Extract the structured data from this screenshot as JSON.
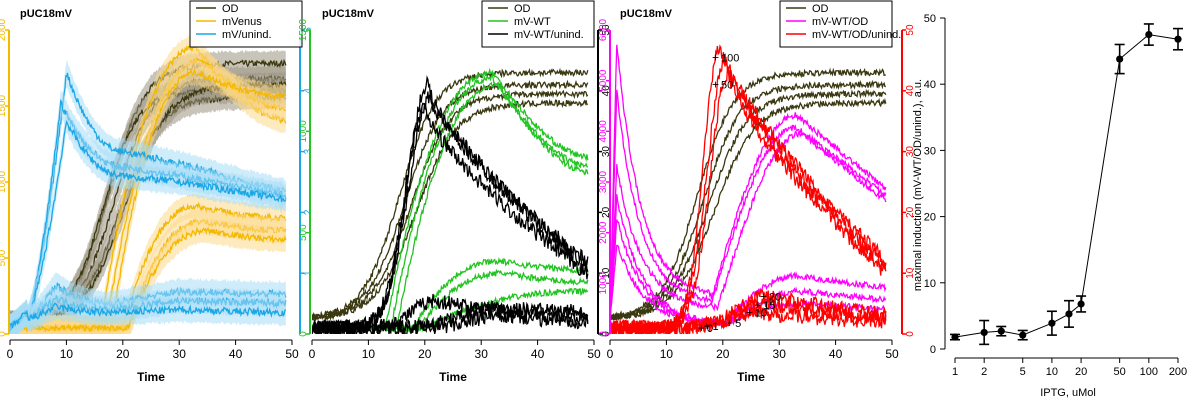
{
  "colors": {
    "od": "#3a3810",
    "od_band": "#9a9480",
    "mvenus": "#f5b800",
    "mvenus_band": "#fbd98a",
    "unind": "#1aa7e6",
    "unind_band": "#a6dcf5",
    "wt": "#22c422",
    "black": "#000000",
    "magenta": "#ff00ff",
    "red": "#ff0000"
  },
  "chart_data": [
    {
      "type": "line",
      "panel_label": "pUC18mV",
      "xlabel": "Time",
      "xlim": [
        0,
        50
      ],
      "x_ticks": [
        "0",
        "10",
        "20",
        "30",
        "40",
        "50"
      ],
      "axes": [
        {
          "side": "left",
          "color_key": "mvenus",
          "range": [
            0,
            2000
          ],
          "ticks": [
            "0",
            "500",
            "1000",
            "1500",
            "2000"
          ]
        },
        {
          "side": "right",
          "color_key": "unind",
          "range": [
            0,
            5
          ],
          "ticks": [
            "1",
            "2",
            "3",
            "4",
            "5"
          ]
        }
      ],
      "legend": {
        "position": "top-right",
        "entries": [
          {
            "label": "OD",
            "color_key": "od"
          },
          {
            "label": "mVenus",
            "color_key": "mvenus"
          },
          {
            "label": "mV/unind.",
            "color_key": "unind"
          }
        ]
      },
      "series": [
        {
          "name": "OD",
          "color_key": "od",
          "band_key": "od_band",
          "kind": "sigmoid",
          "curves": [
            {
              "base": 0.03,
              "top": 0.89,
              "mid": 17.5,
              "k": 0.3
            },
            {
              "base": 0.03,
              "top": 0.84,
              "mid": 18.5,
              "k": 0.29
            },
            {
              "base": 0.03,
              "top": 0.8,
              "mid": 16.5,
              "k": 0.33
            },
            {
              "base": 0.03,
              "top": 0.78,
              "mid": 19.5,
              "k": 0.28
            },
            {
              "base": 0.03,
              "top": 0.82,
              "mid": 20.5,
              "k": 0.27
            }
          ]
        },
        {
          "name": "mVenus",
          "color_key": "mvenus",
          "band_key": "mvenus_band",
          "kind": "peak",
          "curves": [
            {
              "base": 0.02,
              "peak": 0.94,
              "end": 0.7,
              "rise": 22,
              "peakAt": 33
            },
            {
              "base": 0.02,
              "peak": 0.9,
              "end": 0.74,
              "rise": 23,
              "peakAt": 34
            },
            {
              "base": 0.02,
              "peak": 0.86,
              "end": 0.78,
              "rise": 24,
              "peakAt": 33
            },
            {
              "base": 0.02,
              "peak": 0.42,
              "end": 0.38,
              "rise": 26,
              "peakAt": 33
            },
            {
              "base": 0.02,
              "peak": 0.37,
              "end": 0.34,
              "rise": 27,
              "peakAt": 34
            },
            {
              "base": 0.02,
              "peak": 0.34,
              "end": 0.31,
              "rise": 27,
              "peakAt": 35
            }
          ]
        },
        {
          "name": "mV/unind.",
          "color_key": "unind",
          "band_key": "unind_band",
          "kind": "spike",
          "curves": [
            {
              "base": 0.02,
              "spike": 0.86,
              "spikeAt": 10,
              "mid": 0.6,
              "midAt": 20,
              "plateau": 0.56,
              "end": 0.46
            },
            {
              "base": 0.02,
              "spike": 0.76,
              "spikeAt": 9,
              "mid": 0.55,
              "midAt": 20,
              "plateau": 0.52,
              "end": 0.45
            },
            {
              "base": 0.02,
              "spike": 0.7,
              "spikeAt": 10,
              "mid": 0.52,
              "midAt": 20,
              "plateau": 0.5,
              "end": 0.44
            },
            {
              "base": 0.02,
              "spike": 0.16,
              "spikeAt": 8,
              "mid": 0.1,
              "midAt": 18,
              "plateau": 0.14,
              "end": 0.13
            },
            {
              "base": 0.02,
              "spike": 0.12,
              "spikeAt": 8,
              "mid": 0.08,
              "midAt": 18,
              "plateau": 0.11,
              "end": 0.1
            },
            {
              "base": 0.02,
              "spike": 0.09,
              "spikeAt": 8,
              "mid": 0.07,
              "midAt": 18,
              "plateau": 0.08,
              "end": 0.07
            }
          ]
        }
      ]
    },
    {
      "type": "line",
      "panel_label": "pUC18mV",
      "xlabel": "Time",
      "xlim": [
        0,
        50
      ],
      "x_ticks": [
        "0",
        "10",
        "20",
        "30",
        "40",
        "50"
      ],
      "axes": [
        {
          "side": "left",
          "color_key": "wt",
          "range": [
            0,
            1500
          ],
          "ticks": [
            "0",
            "500",
            "1000",
            "1500"
          ]
        },
        {
          "side": "right",
          "color_key": "black",
          "range": [
            0,
            50
          ],
          "ticks": [
            "0",
            "10",
            "20",
            "30",
            "40",
            "50"
          ]
        }
      ],
      "legend": {
        "position": "top-right",
        "entries": [
          {
            "label": "OD",
            "color_key": "od"
          },
          {
            "label": "mV-WT",
            "color_key": "wt"
          },
          {
            "label": "mV-WT/unind.",
            "color_key": "black"
          }
        ]
      },
      "series": [
        {
          "name": "OD",
          "color_key": "od",
          "kind": "sigmoid",
          "curves": [
            {
              "base": 0.05,
              "top": 0.86,
              "mid": 15.5,
              "k": 0.31
            },
            {
              "base": 0.05,
              "top": 0.82,
              "mid": 16.5,
              "k": 0.3
            },
            {
              "base": 0.05,
              "top": 0.79,
              "mid": 17.5,
              "k": 0.29
            },
            {
              "base": 0.05,
              "top": 0.76,
              "mid": 18.5,
              "k": 0.28
            }
          ]
        },
        {
          "name": "mV-WT",
          "color_key": "wt",
          "kind": "peak",
          "curves": [
            {
              "base": 0.02,
              "peak": 0.86,
              "end": 0.58,
              "rise": 19,
              "peakAt": 32
            },
            {
              "base": 0.02,
              "peak": 0.84,
              "end": 0.55,
              "rise": 20,
              "peakAt": 32
            },
            {
              "base": 0.02,
              "peak": 0.82,
              "end": 0.53,
              "rise": 21,
              "peakAt": 33
            },
            {
              "base": 0.02,
              "peak": 0.24,
              "end": 0.21,
              "rise": 24,
              "peakAt": 33
            },
            {
              "base": 0.02,
              "peak": 0.2,
              "end": 0.17,
              "rise": 25,
              "peakAt": 34
            },
            {
              "base": 0.02,
              "peak": 0.14,
              "end": 0.15,
              "rise": 26,
              "peakAt": 48
            }
          ]
        },
        {
          "name": "mV-WT/unind.",
          "color_key": "black",
          "kind": "bump",
          "curves": [
            {
              "base": 0.02,
              "peak": 0.82,
              "peakAt": 20.5,
              "end": 0.2,
              "width": 5
            },
            {
              "base": 0.02,
              "peak": 0.78,
              "peakAt": 21,
              "end": 0.22,
              "width": 5.5
            },
            {
              "base": 0.02,
              "peak": 0.74,
              "peakAt": 20,
              "end": 0.18,
              "width": 5
            },
            {
              "base": 0.02,
              "peak": 0.11,
              "peakAt": 22,
              "end": 0.05,
              "width": 6
            },
            {
              "base": 0.02,
              "peak": 0.09,
              "peakAt": 32,
              "end": 0.07,
              "width": 8
            },
            {
              "base": 0.02,
              "peak": 0.06,
              "peakAt": 34,
              "end": 0.04,
              "width": 8
            }
          ]
        }
      ]
    },
    {
      "type": "line",
      "panel_label": "pUC18mV",
      "xlabel": "Time",
      "xlim": [
        0,
        50
      ],
      "x_ticks": [
        "0",
        "10",
        "20",
        "30",
        "40",
        "50"
      ],
      "axes": [
        {
          "side": "left",
          "color_key": "magenta",
          "range": [
            0,
            6000
          ],
          "ticks": [
            "0",
            "1000",
            "2000",
            "3000",
            "4000",
            "5000",
            "6000"
          ]
        },
        {
          "side": "right",
          "color_key": "red",
          "range": [
            0,
            50
          ],
          "ticks": [
            "0",
            "10",
            "20",
            "30",
            "40",
            "50"
          ]
        }
      ],
      "legend": {
        "position": "top-right",
        "entries": [
          {
            "label": "OD",
            "color_key": "od"
          },
          {
            "label": "mV-WT/OD",
            "color_key": "magenta"
          },
          {
            "label": "mV-WT/OD/unind.",
            "color_key": "red"
          }
        ]
      },
      "annotations": [
        {
          "text": "100",
          "x": 19.5,
          "y": 45.5
        },
        {
          "text": "50",
          "x": 19.5,
          "y": 41.0
        },
        {
          "text": "20",
          "x": 28.0,
          "y": 6.2
        },
        {
          "text": "15",
          "x": 27.0,
          "y": 4.8
        },
        {
          "text": "10",
          "x": 25.5,
          "y": 3.5
        },
        {
          "text": "5",
          "x": 22.0,
          "y": 1.8
        },
        {
          "text": "1",
          "x": 18.0,
          "y": 1.3
        },
        {
          "text": "0",
          "x": 17.0,
          "y": 1.0
        }
      ],
      "series": [
        {
          "name": "OD",
          "color_key": "od",
          "kind": "sigmoid",
          "curves": [
            {
              "base": 0.05,
              "top": 0.86,
              "mid": 15.5,
              "k": 0.31
            },
            {
              "base": 0.05,
              "top": 0.82,
              "mid": 16.5,
              "k": 0.3
            },
            {
              "base": 0.05,
              "top": 0.79,
              "mid": 17.5,
              "k": 0.29
            },
            {
              "base": 0.05,
              "top": 0.76,
              "mid": 18.5,
              "k": 0.28
            }
          ]
        },
        {
          "name": "mV-WT/OD",
          "color_key": "magenta",
          "kind": "spikedecay",
          "curves": [
            {
              "spike": 0.96,
              "dip": 0.12,
              "dipAt": 18,
              "peak": 0.72,
              "peakAt": 33,
              "end": 0.46
            },
            {
              "spike": 0.8,
              "dip": 0.1,
              "dipAt": 18,
              "peak": 0.68,
              "peakAt": 33,
              "end": 0.44
            },
            {
              "spike": 0.55,
              "dip": 0.08,
              "dipAt": 19,
              "peak": 0.66,
              "peakAt": 34,
              "end": 0.42
            },
            {
              "spike": 0.45,
              "dip": 0.03,
              "dipAt": 20,
              "peak": 0.19,
              "peakAt": 33,
              "end": 0.15
            },
            {
              "spike": 0.38,
              "dip": 0.03,
              "dipAt": 20,
              "peak": 0.14,
              "peakAt": 34,
              "end": 0.11
            },
            {
              "spike": 0.3,
              "dip": 0.03,
              "dipAt": 20,
              "peak": 0.1,
              "peakAt": 34,
              "end": 0.08
            }
          ]
        },
        {
          "name": "mV-WT/OD/unind.",
          "color_key": "red",
          "kind": "bump",
          "curves": [
            {
              "base": 0.02,
              "peak": 0.95,
              "peakAt": 19.5,
              "end": 0.22,
              "width": 4
            },
            {
              "base": 0.02,
              "peak": 0.9,
              "peakAt": 20.5,
              "end": 0.2,
              "width": 4.5
            },
            {
              "base": 0.02,
              "peak": 0.86,
              "peakAt": 21,
              "end": 0.18,
              "width": 4.5
            },
            {
              "base": 0.02,
              "peak": 0.13,
              "peakAt": 28,
              "end": 0.06,
              "width": 7
            },
            {
              "base": 0.02,
              "peak": 0.1,
              "peakAt": 28,
              "end": 0.05,
              "width": 7
            },
            {
              "base": 0.02,
              "peak": 0.07,
              "peakAt": 26,
              "end": 0.04,
              "width": 7
            }
          ]
        }
      ]
    },
    {
      "type": "line",
      "xlabel": "IPTG, uMol",
      "ylabel": "maximal induction (mV-WT/OD/unind.), a.u.",
      "xscale": "log",
      "xlim": [
        0.8,
        200
      ],
      "ylim": [
        0,
        50
      ],
      "x_ticks": [
        1,
        2,
        5,
        10,
        20,
        50,
        100,
        200
      ],
      "y_ticks": [
        0,
        10,
        20,
        30,
        40,
        50
      ],
      "points": [
        {
          "x": 1,
          "y": 1.8,
          "err": 0.4
        },
        {
          "x": 2,
          "y": 2.5,
          "err": 1.8
        },
        {
          "x": 3,
          "y": 2.7,
          "err": 0.7
        },
        {
          "x": 5,
          "y": 2.1,
          "err": 0.7
        },
        {
          "x": 10,
          "y": 3.9,
          "err": 1.8
        },
        {
          "x": 15,
          "y": 5.3,
          "err": 2.0
        },
        {
          "x": 20,
          "y": 6.8,
          "err": 1.2
        },
        {
          "x": 50,
          "y": 43.8,
          "err": 2.2
        },
        {
          "x": 100,
          "y": 47.5,
          "err": 1.6
        },
        {
          "x": 200,
          "y": 46.8,
          "err": 1.6
        }
      ]
    }
  ]
}
